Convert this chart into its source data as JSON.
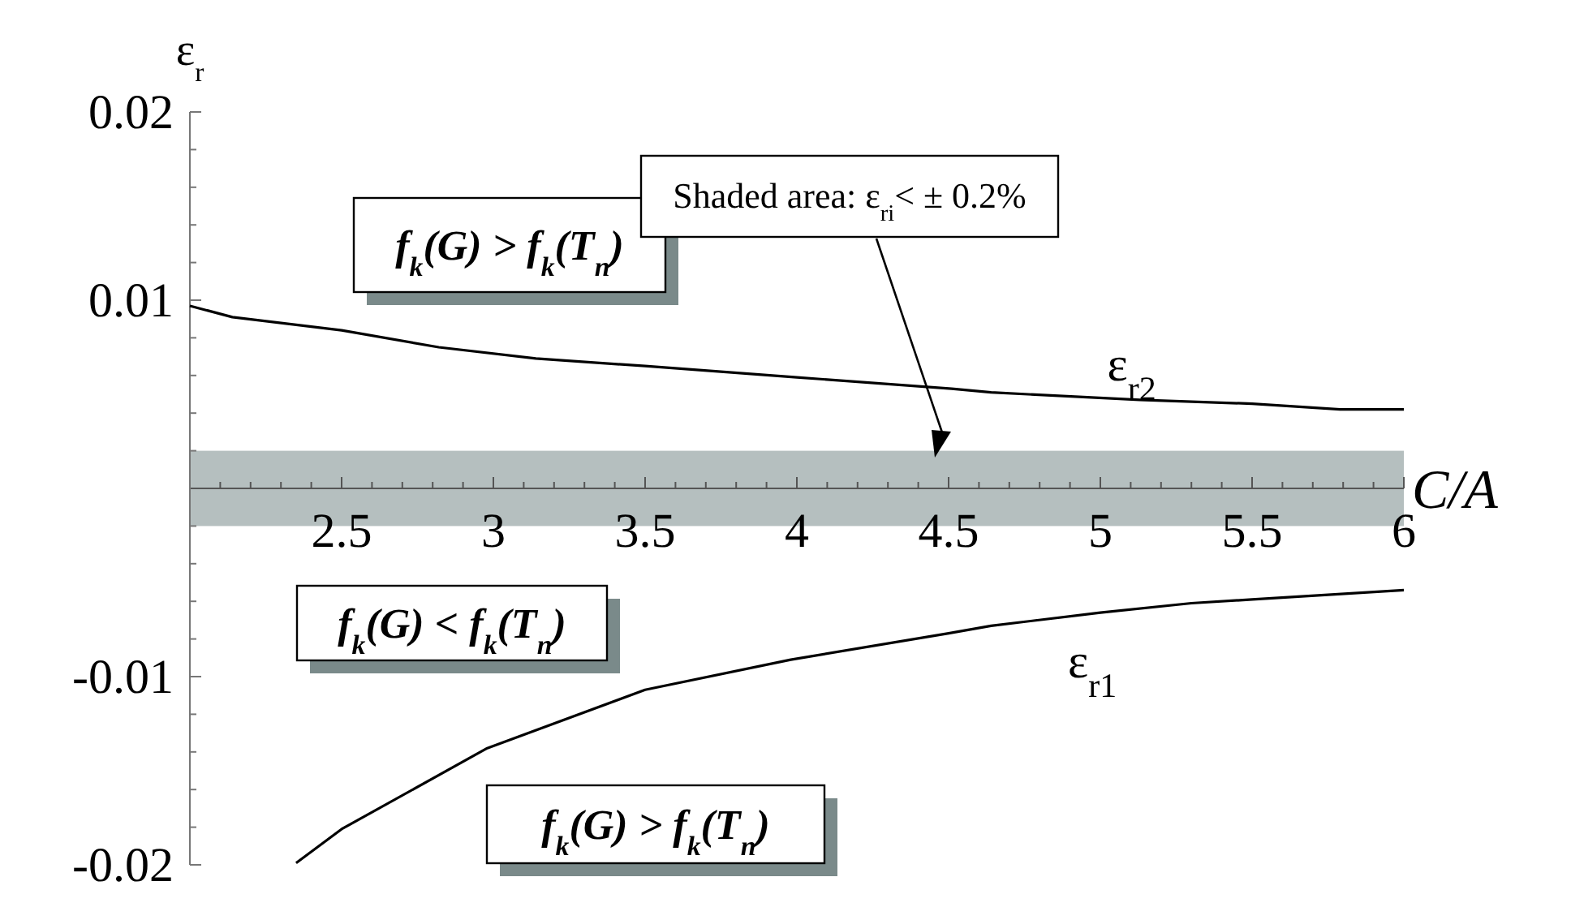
{
  "chart_data": {
    "type": "line",
    "xlabel": "C/A",
    "ylabel": "ε$_{r}$",
    "xlim": [
      2,
      6
    ],
    "ylim": [
      -0.02,
      0.02
    ],
    "xticks": [
      {
        "value": 2.1,
        "label": null
      },
      {
        "value": 2.2,
        "label": null
      },
      {
        "value": 2.3,
        "label": null
      },
      {
        "value": 2.4,
        "label": null
      },
      2.5,
      {
        "value": 2.6,
        "label": null
      },
      {
        "value": 2.7,
        "label": null
      },
      {
        "value": 2.8,
        "label": null
      },
      {
        "value": 2.9,
        "label": null
      },
      3,
      {
        "value": 3.1,
        "label": null
      },
      {
        "value": 3.2,
        "label": null
      },
      {
        "value": 3.3,
        "label": null
      },
      {
        "value": 3.4,
        "label": null
      },
      3.5,
      {
        "value": 3.6,
        "label": null
      },
      {
        "value": 3.7,
        "label": null
      },
      {
        "value": 3.8,
        "label": null
      },
      {
        "value": 3.9,
        "label": null
      },
      4,
      {
        "value": 4.1,
        "label": null
      },
      {
        "value": 4.2,
        "label": null
      },
      {
        "value": 4.3,
        "label": null
      },
      {
        "value": 4.4,
        "label": null
      },
      4.5,
      {
        "value": 4.6,
        "label": null
      },
      {
        "value": 4.7,
        "label": null
      },
      {
        "value": 4.8,
        "label": null
      },
      {
        "value": 4.9,
        "label": null
      },
      5,
      {
        "value": 5.1,
        "label": null
      },
      {
        "value": 5.2,
        "label": null
      },
      {
        "value": 5.3,
        "label": null
      },
      {
        "value": 5.4,
        "label": null
      },
      5.5,
      {
        "value": 5.6,
        "label": null
      },
      {
        "value": 5.7,
        "label": null
      },
      {
        "value": 5.8,
        "label": null
      },
      {
        "value": 5.9,
        "label": null
      },
      6
    ],
    "yticks": [
      -0.02,
      {
        "value": -0.018,
        "label": null
      },
      {
        "value": -0.016,
        "label": null
      },
      {
        "value": -0.014,
        "label": null
      },
      {
        "value": -0.012,
        "label": null
      },
      -0.01,
      {
        "value": -0.008,
        "label": null
      },
      {
        "value": -0.006,
        "label": null
      },
      {
        "value": -0.004,
        "label": null
      },
      {
        "value": -0.002,
        "label": null
      },
      {
        "value": 0.002,
        "label": null
      },
      {
        "value": 0.004,
        "label": null
      },
      {
        "value": 0.006,
        "label": null
      },
      {
        "value": 0.008,
        "label": null
      },
      0.01,
      {
        "value": 0.012,
        "label": null
      },
      {
        "value": 0.014,
        "label": null
      },
      {
        "value": 0.016,
        "label": null
      },
      {
        "value": 0.018,
        "label": null
      },
      0.02
    ],
    "grid": false,
    "marker": "none",
    "line_style": "solid",
    "series": [
      {
        "name": "ε$_{r2}$",
        "color": "#000000",
        "x": [
          2,
          2.14,
          2.5,
          2.82,
          3.14,
          3.5,
          4,
          4.51,
          4.64,
          5.13,
          5.5,
          5.79,
          6
        ],
        "values": [
          0.0097,
          0.0091,
          0.0084,
          0.0075,
          0.0069,
          0.0065,
          0.0059,
          0.0053,
          0.0051,
          0.0047,
          0.0045,
          0.0042,
          0.0042
        ]
      },
      {
        "name": "ε$_{r1}$",
        "color": "#000000",
        "x": [
          2.35,
          2.5,
          2.98,
          3.5,
          3.98,
          4.5,
          4.64,
          5,
          5.3,
          5.5,
          6
        ],
        "values": [
          -0.0199,
          -0.0181,
          -0.0138,
          -0.0107,
          -0.0091,
          -0.0077,
          -0.0073,
          -0.0066,
          -0.0061,
          -0.0059,
          -0.0054
        ]
      }
    ],
    "bands": [
      {
        "axis": "y",
        "from": -0.002,
        "to": 0.002,
        "color": "#b5bfbf"
      }
    ],
    "annotations": [
      "f$_{k}$(G) > f$_{k}$(T$_{n}$)",
      "f$_{k}$(G) < f$_{k}$(T$_{n}$)",
      "f$_{k}$(G) > f$_{k}$(T$_{n}$)",
      "Shaded area: ε$_{ri}$< ± 0.2%"
    ]
  }
}
